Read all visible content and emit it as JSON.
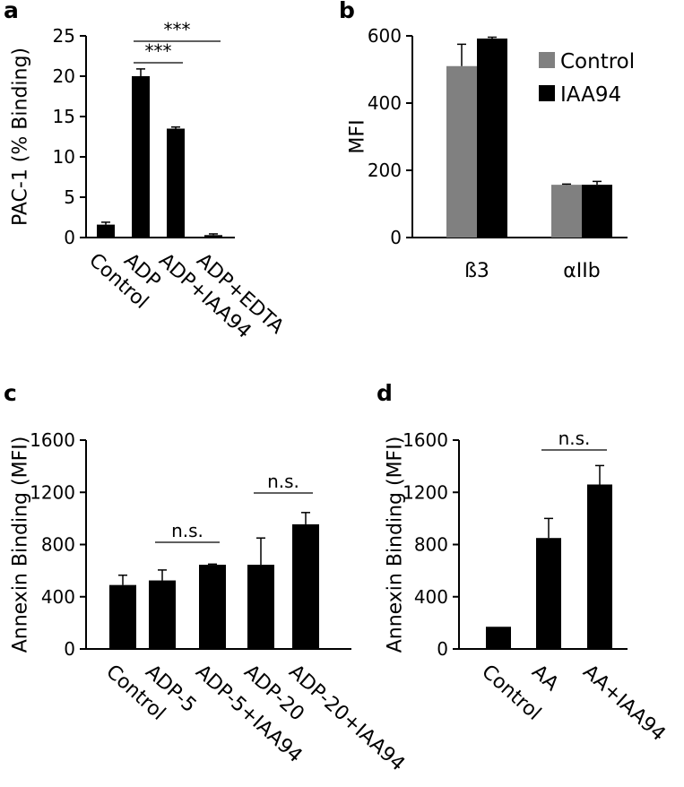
{
  "colors": {
    "black": "#000000",
    "grey": "#808080",
    "axis": "#000000"
  },
  "chart_data": [
    {
      "panel": "a",
      "type": "bar",
      "ylabel": "PAC-1 (% Binding)",
      "ylim": [
        0,
        25
      ],
      "yticks": [
        0,
        5,
        10,
        15,
        20,
        25
      ],
      "categories": [
        "Control",
        "ADP",
        "ADP+IAA94",
        "ADP+EDTA"
      ],
      "series": [
        {
          "name": "PAC-1",
          "color": "#000000",
          "values": [
            1.6,
            20.0,
            13.5,
            0.3
          ],
          "errors": [
            0.3,
            0.9,
            0.2,
            0.15
          ]
        }
      ],
      "significance": [
        {
          "from": 1,
          "to": 2,
          "label": "***"
        },
        {
          "from": 1,
          "to": 3,
          "label": "***"
        }
      ]
    },
    {
      "panel": "b",
      "type": "bar",
      "ylabel": "MFI",
      "ylim": [
        0,
        600
      ],
      "yticks": [
        0,
        200,
        400,
        600
      ],
      "categories": [
        "ß3",
        "αIIb"
      ],
      "legend": [
        "Control",
        "IAA94"
      ],
      "series": [
        {
          "name": "Control",
          "color": "#808080",
          "values": [
            510,
            157
          ],
          "errors": [
            65,
            2
          ]
        },
        {
          "name": "IAA94",
          "color": "#000000",
          "values": [
            592,
            157
          ],
          "errors": [
            4,
            10
          ]
        }
      ]
    },
    {
      "panel": "c",
      "type": "bar",
      "ylabel": "Annexin Binding (MFI)",
      "ylim": [
        0,
        1600
      ],
      "yticks": [
        0,
        400,
        800,
        1200,
        1600
      ],
      "categories": [
        "Control",
        "ADP-5",
        "ADP-5+IAA94",
        "ADP-20",
        "ADP-20+IAA94"
      ],
      "series": [
        {
          "name": "Annexin",
          "color": "#000000",
          "values": [
            490,
            525,
            645,
            645,
            955
          ],
          "errors": [
            75,
            80,
            5,
            205,
            90
          ]
        }
      ],
      "significance": [
        {
          "from": 1,
          "to": 2,
          "label": "n.s."
        },
        {
          "from": 3,
          "to": 4,
          "label": "n.s."
        }
      ]
    },
    {
      "panel": "d",
      "type": "bar",
      "ylabel": "Annexin Binding (MFI)",
      "ylim": [
        0,
        1600
      ],
      "yticks": [
        0,
        400,
        800,
        1200,
        1600
      ],
      "categories": [
        "Control",
        "AA",
        "AA+IAA94"
      ],
      "series": [
        {
          "name": "Annexin",
          "color": "#000000",
          "values": [
            170,
            850,
            1260
          ],
          "errors": [
            0,
            150,
            145
          ]
        }
      ],
      "significance": [
        {
          "from": 1,
          "to": 2,
          "label": "n.s."
        }
      ]
    }
  ]
}
